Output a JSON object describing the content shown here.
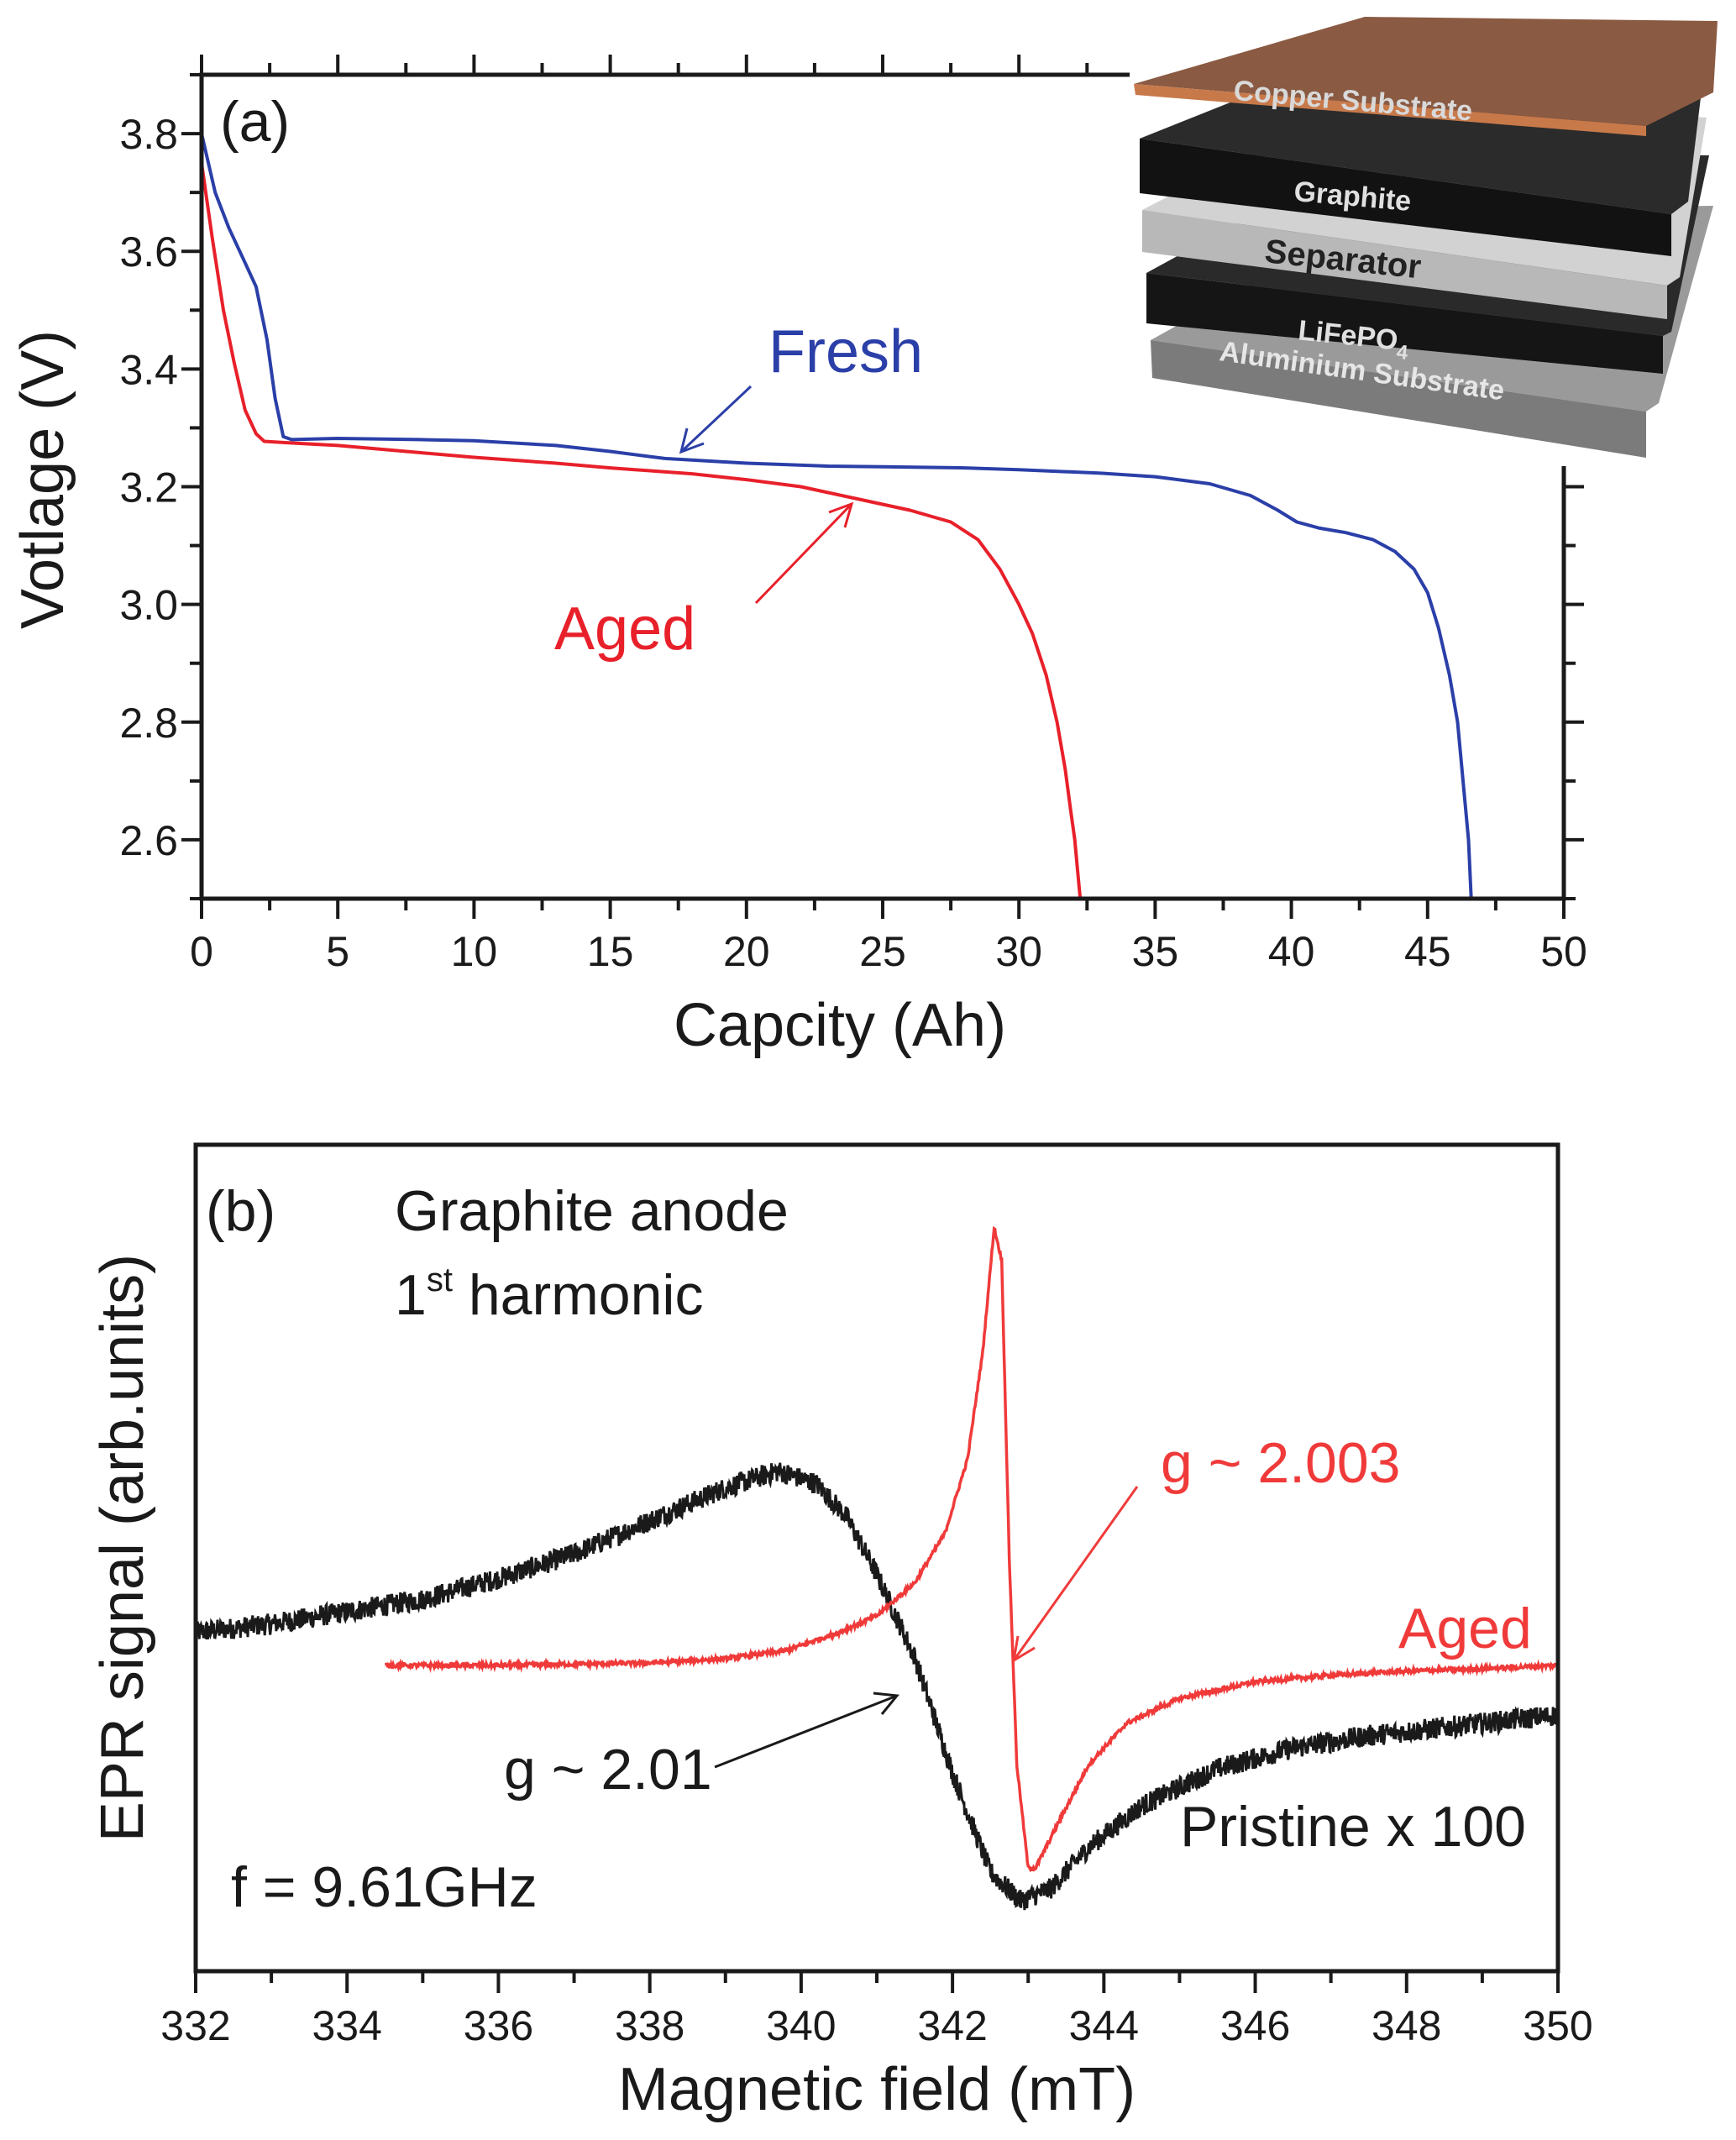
{
  "chart_data": [
    {
      "type": "line",
      "panel_label": "(a)",
      "xlabel": "Capcity (Ah)",
      "ylabel": "Votlage (V)",
      "xlim": [
        0,
        50
      ],
      "ylim": [
        2.5,
        3.9
      ],
      "xticks": [
        0,
        5,
        10,
        15,
        20,
        25,
        30,
        35,
        40,
        45,
        50
      ],
      "yticks": [
        2.6,
        2.8,
        3.0,
        3.2,
        3.4,
        3.6,
        3.8
      ],
      "yticks_text": [
        "2.6",
        "2.8",
        "3.0",
        "3.2",
        "3.4",
        "3.6",
        "3.8"
      ],
      "grid": false,
      "series": [
        {
          "name": "Fresh",
          "color": "#2b3fa8",
          "x": [
            0,
            0.5,
            1,
            1.5,
            2,
            2.4,
            2.7,
            3.0,
            3.3,
            5,
            8,
            10,
            13,
            15,
            17,
            20,
            23,
            25,
            28,
            30,
            33,
            35,
            37,
            38.5,
            39.5,
            40.2,
            41,
            42,
            43,
            43.8,
            44.5,
            45,
            45.4,
            45.8,
            46.1,
            46.3,
            46.5,
            46.6
          ],
          "y": [
            3.8,
            3.7,
            3.64,
            3.59,
            3.54,
            3.45,
            3.35,
            3.285,
            3.28,
            3.282,
            3.28,
            3.278,
            3.27,
            3.26,
            3.248,
            3.24,
            3.235,
            3.234,
            3.232,
            3.229,
            3.223,
            3.217,
            3.205,
            3.185,
            3.16,
            3.14,
            3.13,
            3.122,
            3.11,
            3.09,
            3.06,
            3.02,
            2.96,
            2.88,
            2.8,
            2.7,
            2.6,
            2.5
          ]
        },
        {
          "name": "Aged",
          "color": "#e8202a",
          "x": [
            0,
            0.4,
            0.8,
            1.2,
            1.6,
            2.0,
            2.3,
            3,
            5,
            8,
            10,
            13,
            15,
            18,
            20,
            22,
            24,
            26,
            27.5,
            28.5,
            29.3,
            30,
            30.5,
            31,
            31.4,
            31.7,
            31.9,
            32.05,
            32.15,
            32.25
          ],
          "y": [
            3.75,
            3.62,
            3.5,
            3.41,
            3.33,
            3.29,
            3.277,
            3.275,
            3.27,
            3.258,
            3.25,
            3.24,
            3.232,
            3.222,
            3.212,
            3.2,
            3.18,
            3.16,
            3.14,
            3.11,
            3.06,
            3.0,
            2.95,
            2.88,
            2.8,
            2.72,
            2.65,
            2.6,
            2.55,
            2.5
          ]
        }
      ],
      "annotations": [
        {
          "text": "Fresh",
          "color": "#2b3fa8",
          "points_to_capacity": 17.5
        },
        {
          "text": "Aged",
          "color": "#e8202a",
          "points_to_capacity": 24
        }
      ],
      "inset_layers": [
        "Copper Substrate",
        "Graphite",
        "Separator",
        "LiFePO",
        "Aluminium Substrate"
      ],
      "inset_subscript": "4"
    },
    {
      "type": "line",
      "panel_label": "(b)",
      "xlabel": "Magnetic field (mT)",
      "ylabel": "EPR signal (arb.units)",
      "xlim": [
        332,
        350
      ],
      "ylim": [
        0,
        100
      ],
      "xticks": [
        332,
        334,
        336,
        338,
        340,
        342,
        344,
        346,
        348,
        350
      ],
      "grid": false,
      "title_lines": [
        "Graphite anode",
        "1",
        "st",
        " harmonic"
      ],
      "frequency": "f = 9.61GHz",
      "series": [
        {
          "name": "Pristine x 100",
          "color": "#1a1a1a",
          "x": [
            332,
            333,
            334,
            335,
            336,
            337,
            338,
            339,
            339.7,
            340.2,
            340.6,
            341,
            341.5,
            342,
            342.5,
            342.9,
            343.3,
            343.8,
            344.5,
            345.5,
            346.5,
            347.5,
            348.5,
            350
          ],
          "y": [
            41,
            42,
            43.5,
            45,
            47.5,
            50.5,
            54.5,
            58.5,
            60.5,
            59,
            55,
            48,
            38,
            24,
            12,
            8.5,
            10,
            15,
            20,
            24.5,
            27,
            28.5,
            29.5,
            31
          ]
        },
        {
          "name": "Aged",
          "color": "#f03a3a",
          "x": [
            334.5,
            336,
            338,
            339,
            339.8,
            340.5,
            341,
            341.5,
            341.9,
            342.2,
            342.4,
            342.55,
            342.65,
            342.75,
            342.85,
            343.0,
            343.1,
            343.4,
            343.8,
            344.3,
            345,
            346,
            347,
            348,
            349,
            350
          ],
          "y": [
            37,
            37,
            37.3,
            37.8,
            38.8,
            41,
            43,
            47,
            53,
            62,
            75,
            90,
            86,
            50,
            25,
            12.5,
            12.5,
            18,
            25,
            30,
            33,
            35,
            35.8,
            36.3,
            36.6,
            37
          ]
        }
      ],
      "annotations": [
        {
          "text": "g ~ 2.003",
          "color": "#f03a3a"
        },
        {
          "text": "Aged",
          "color": "#f03a3a"
        },
        {
          "text": "g ~ 2.01",
          "color": "#1a1a1a"
        },
        {
          "text": "Pristine x 100",
          "color": "#1a1a1a"
        }
      ]
    }
  ]
}
